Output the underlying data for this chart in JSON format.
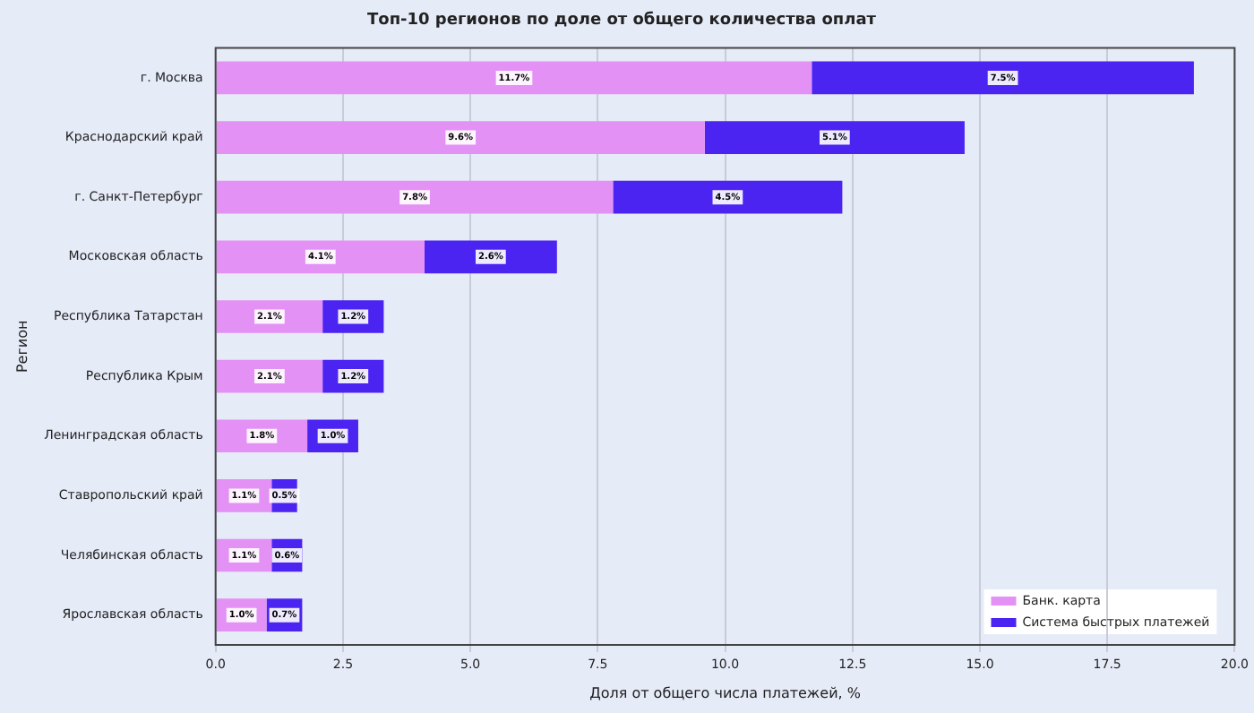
{
  "chart_data": {
    "type": "bar",
    "orientation": "horizontal",
    "stacked": true,
    "title": "Топ-10 регионов по доле от общего количества оплат",
    "xlabel": "Доля от общего числа платежей, %",
    "ylabel": "Регион",
    "categories": [
      "г. Москва",
      "Краснодарский край",
      "г. Санкт-Петербург",
      "Московская область",
      "Республика Татарстан",
      "Республика Крым",
      "Ленинградская область",
      "Ставропольский край",
      "Челябинская область",
      "Ярославская область"
    ],
    "series": [
      {
        "name": "Банк. карта",
        "color": "#e391f5",
        "values": [
          11.7,
          9.6,
          7.8,
          4.1,
          2.1,
          2.1,
          1.8,
          1.1,
          1.1,
          1.0
        ],
        "value_labels": [
          "11.7%",
          "9.6%",
          "7.8%",
          "4.1%",
          "2.1%",
          "2.1%",
          "1.8%",
          "1.1%",
          "1.1%",
          "1.0%"
        ]
      },
      {
        "name": "Система быстрых платежей",
        "color": "#4b24f2",
        "values": [
          7.5,
          5.1,
          4.5,
          2.6,
          1.2,
          1.2,
          1.0,
          0.5,
          0.6,
          0.7
        ],
        "value_labels": [
          "7.5%",
          "5.1%",
          "4.5%",
          "2.6%",
          "1.2%",
          "1.2%",
          "1.0%",
          "0.5%",
          "0.6%",
          "0.7%"
        ]
      }
    ],
    "xlim": [
      0,
      20
    ],
    "xticks": [
      {
        "value": 0,
        "label": "0.0"
      },
      {
        "value": 2.5,
        "label": "2.5"
      },
      {
        "value": 5,
        "label": "5.0"
      },
      {
        "value": 7.5,
        "label": "7.5"
      },
      {
        "value": 10,
        "label": "10.0"
      },
      {
        "value": 12.5,
        "label": "12.5"
      },
      {
        "value": 15,
        "label": "15.0"
      },
      {
        "value": 17.5,
        "label": "17.5"
      },
      {
        "value": 20,
        "label": "20.0"
      }
    ],
    "grid": "x",
    "legend": "bottom right"
  }
}
